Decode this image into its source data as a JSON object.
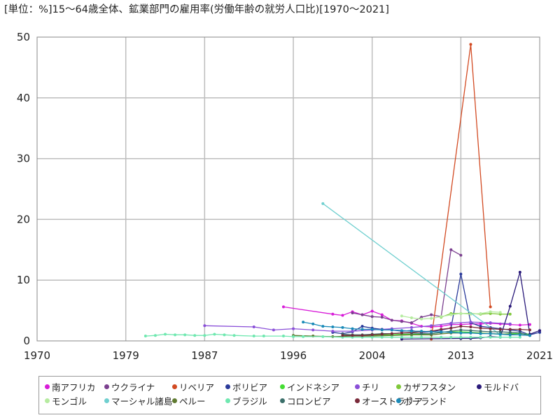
{
  "chart_data": {
    "type": "line",
    "title": "[単位：%]15～64歳全体、鉱業部門の雇用率(労働年齢の就労人口比)[1970～2021]",
    "xlabel": "",
    "ylabel": "",
    "xlim": [
      1970,
      2021
    ],
    "ylim": [
      0,
      50
    ],
    "x_ticks": [
      "1970",
      "1979",
      "1987",
      "1996",
      "2004",
      "2013",
      "2021"
    ],
    "y_ticks": [
      "0",
      "10",
      "20",
      "30",
      "40",
      "50"
    ],
    "grid": true,
    "legend_position": "bottom",
    "series": [
      {
        "name": "南アフリカ",
        "color": "#d81bd8",
        "points": [
          [
            1995,
            5.6
          ],
          [
            2000,
            4.4
          ],
          [
            2001,
            4.2
          ],
          [
            2002,
            4.8
          ],
          [
            2003,
            4.3
          ],
          [
            2004,
            4.9
          ],
          [
            2005,
            4.3
          ],
          [
            2006,
            3.4
          ],
          [
            2007,
            3.3
          ],
          [
            2008,
            2.9
          ],
          [
            2009,
            2.4
          ],
          [
            2010,
            2.3
          ],
          [
            2011,
            2.4
          ],
          [
            2012,
            2.7
          ],
          [
            2013,
            2.7
          ],
          [
            2014,
            2.8
          ],
          [
            2015,
            2.8
          ],
          [
            2016,
            2.9
          ],
          [
            2017,
            2.8
          ],
          [
            2018,
            2.7
          ],
          [
            2019,
            2.6
          ],
          [
            2020,
            2.7
          ]
        ]
      },
      {
        "name": "ウクライナ",
        "color": "#7b3f8f",
        "points": [
          [
            2002,
            4.6
          ],
          [
            2003,
            4.3
          ],
          [
            2004,
            4.0
          ],
          [
            2005,
            3.9
          ],
          [
            2006,
            3.4
          ],
          [
            2007,
            3.2
          ],
          [
            2008,
            3.0
          ],
          [
            2009,
            3.9
          ],
          [
            2010,
            4.3
          ],
          [
            2011,
            4.0
          ],
          [
            2012,
            15.0
          ],
          [
            2013,
            14.1
          ]
        ]
      },
      {
        "name": "リベリア",
        "color": "#d24a22",
        "points": [
          [
            2010,
            0.3
          ],
          [
            2014,
            48.8
          ],
          [
            2016,
            5.6
          ]
        ]
      },
      {
        "name": "ボリビア",
        "color": "#2a3a9a",
        "points": [
          [
            2000,
            1.4
          ],
          [
            2001,
            1.2
          ],
          [
            2002,
            1.5
          ],
          [
            2003,
            2.4
          ],
          [
            2004,
            2.1
          ],
          [
            2005,
            1.9
          ],
          [
            2006,
            1.8
          ],
          [
            2007,
            1.6
          ],
          [
            2008,
            1.7
          ],
          [
            2009,
            1.4
          ],
          [
            2010,
            1.5
          ],
          [
            2011,
            1.8
          ],
          [
            2012,
            2.1
          ],
          [
            2013,
            11.0
          ],
          [
            2014,
            3.0
          ],
          [
            2015,
            2.4
          ],
          [
            2016,
            2.2
          ],
          [
            2017,
            2.0
          ],
          [
            2018,
            1.8
          ],
          [
            2019,
            1.6
          ],
          [
            2020,
            1.0
          ],
          [
            2021,
            1.4
          ]
        ]
      },
      {
        "name": "インドネシア",
        "color": "#44dd33",
        "points": [
          [
            2001,
            0.8
          ],
          [
            2002,
            0.9
          ],
          [
            2003,
            0.8
          ],
          [
            2004,
            0.9
          ],
          [
            2005,
            1.0
          ],
          [
            2006,
            1.0
          ],
          [
            2007,
            1.1
          ],
          [
            2008,
            1.1
          ],
          [
            2009,
            1.1
          ],
          [
            2010,
            1.2
          ],
          [
            2011,
            1.4
          ],
          [
            2012,
            1.5
          ],
          [
            2013,
            1.5
          ],
          [
            2014,
            1.4
          ],
          [
            2015,
            1.3
          ],
          [
            2016,
            1.2
          ],
          [
            2017,
            1.1
          ],
          [
            2018,
            1.2
          ],
          [
            2019,
            1.2
          ],
          [
            2020,
            1.1
          ]
        ]
      },
      {
        "name": "チリ",
        "color": "#8a4fd8",
        "points": [
          [
            1987,
            2.5
          ],
          [
            1992,
            2.3
          ],
          [
            1994,
            1.8
          ],
          [
            1996,
            2.0
          ],
          [
            1998,
            1.8
          ],
          [
            2000,
            1.6
          ],
          [
            2002,
            1.6
          ],
          [
            2004,
            1.8
          ],
          [
            2006,
            2.0
          ],
          [
            2008,
            2.2
          ],
          [
            2010,
            2.5
          ],
          [
            2012,
            2.9
          ],
          [
            2014,
            3.1
          ],
          [
            2016,
            3.0
          ],
          [
            2018,
            2.8
          ]
        ]
      },
      {
        "name": "カザフスタン",
        "color": "#7fc83a",
        "points": [
          [
            2011,
            3.9
          ],
          [
            2012,
            4.5
          ],
          [
            2013,
            4.5
          ],
          [
            2014,
            4.5
          ],
          [
            2015,
            4.4
          ],
          [
            2016,
            4.5
          ],
          [
            2017,
            4.4
          ],
          [
            2018,
            4.4
          ]
        ]
      },
      {
        "name": "モルドバ",
        "color": "#2a1a7a",
        "points": [
          [
            2007,
            0.3
          ],
          [
            2013,
            0.4
          ],
          [
            2014,
            0.4
          ],
          [
            2015,
            0.5
          ],
          [
            2016,
            0.7
          ],
          [
            2017,
            0.6
          ],
          [
            2018,
            5.7
          ],
          [
            2019,
            11.3
          ],
          [
            2020,
            1.1
          ],
          [
            2021,
            1.7
          ]
        ]
      },
      {
        "name": "モンゴル",
        "color": "#b6eba0",
        "points": [
          [
            2007,
            4.1
          ],
          [
            2008,
            3.8
          ],
          [
            2009,
            3.6
          ],
          [
            2010,
            3.7
          ],
          [
            2011,
            4.0
          ],
          [
            2012,
            4.3
          ],
          [
            2013,
            4.5
          ],
          [
            2014,
            4.4
          ],
          [
            2015,
            4.5
          ],
          [
            2016,
            4.8
          ],
          [
            2017,
            4.7
          ]
        ]
      },
      {
        "name": "マーシャル諸島",
        "color": "#6fcfcf",
        "points": [
          [
            1999,
            22.6
          ],
          [
            2017,
            1.0
          ]
        ]
      },
      {
        "name": "ペルー",
        "color": "#5f7a30",
        "points": [
          [
            1996,
            0.9
          ],
          [
            1998,
            0.8
          ],
          [
            2000,
            0.7
          ],
          [
            2002,
            0.8
          ],
          [
            2004,
            0.8
          ],
          [
            2006,
            0.9
          ],
          [
            2008,
            1.0
          ],
          [
            2010,
            1.0
          ],
          [
            2012,
            1.3
          ],
          [
            2014,
            1.3
          ],
          [
            2016,
            1.2
          ],
          [
            2018,
            1.1
          ],
          [
            2020,
            0.9
          ]
        ]
      },
      {
        "name": "ブラジル",
        "color": "#6fe8b0",
        "points": [
          [
            1981,
            0.8
          ],
          [
            1982,
            0.9
          ],
          [
            1983,
            1.1
          ],
          [
            1984,
            1.0
          ],
          [
            1985,
            1.0
          ],
          [
            1986,
            0.9
          ],
          [
            1987,
            0.9
          ],
          [
            1988,
            1.1
          ],
          [
            1989,
            1.0
          ],
          [
            1990,
            0.9
          ],
          [
            1992,
            0.8
          ],
          [
            1993,
            0.8
          ],
          [
            1995,
            0.8
          ],
          [
            1996,
            0.7
          ],
          [
            1997,
            0.7
          ],
          [
            1999,
            0.7
          ],
          [
            2001,
            0.6
          ],
          [
            2002,
            0.6
          ],
          [
            2003,
            0.6
          ],
          [
            2004,
            0.6
          ],
          [
            2005,
            0.6
          ],
          [
            2006,
            0.6
          ],
          [
            2007,
            0.6
          ],
          [
            2008,
            0.6
          ],
          [
            2009,
            0.6
          ],
          [
            2011,
            0.6
          ],
          [
            2012,
            0.6
          ],
          [
            2013,
            0.6
          ],
          [
            2014,
            0.6
          ],
          [
            2015,
            0.6
          ],
          [
            2016,
            0.6
          ],
          [
            2017,
            0.6
          ],
          [
            2018,
            0.6
          ],
          [
            2019,
            0.6
          ]
        ]
      },
      {
        "name": "コロンビア",
        "color": "#3b6f6a",
        "points": [
          [
            2001,
            1.1
          ],
          [
            2002,
            1.0
          ],
          [
            2003,
            1.0
          ],
          [
            2004,
            1.1
          ],
          [
            2005,
            1.2
          ],
          [
            2006,
            1.2
          ],
          [
            2007,
            1.3
          ],
          [
            2008,
            1.3
          ],
          [
            2009,
            1.2
          ],
          [
            2010,
            1.2
          ],
          [
            2011,
            1.4
          ],
          [
            2012,
            1.6
          ],
          [
            2013,
            1.8
          ],
          [
            2014,
            1.7
          ],
          [
            2015,
            1.6
          ],
          [
            2016,
            1.5
          ],
          [
            2017,
            1.5
          ],
          [
            2018,
            1.4
          ],
          [
            2019,
            1.3
          ],
          [
            2020,
            0.9
          ]
        ]
      },
      {
        "name": "オーストラリア",
        "color": "#7a2a3a",
        "points": [
          [
            2001,
            0.9
          ],
          [
            2002,
            0.9
          ],
          [
            2003,
            0.9
          ],
          [
            2004,
            1.0
          ],
          [
            2005,
            1.1
          ],
          [
            2006,
            1.2
          ],
          [
            2007,
            1.3
          ],
          [
            2008,
            1.4
          ],
          [
            2009,
            1.5
          ],
          [
            2010,
            1.6
          ],
          [
            2011,
            1.9
          ],
          [
            2012,
            2.1
          ],
          [
            2013,
            2.4
          ],
          [
            2014,
            2.3
          ],
          [
            2015,
            2.1
          ],
          [
            2016,
            2.0
          ],
          [
            2017,
            1.9
          ],
          [
            2018,
            1.9
          ],
          [
            2019,
            1.9
          ],
          [
            2020,
            1.8
          ]
        ]
      },
      {
        "name": "ポーランド",
        "color": "#1a8ab8",
        "points": [
          [
            1997,
            3.1
          ],
          [
            1998,
            2.8
          ],
          [
            1999,
            2.4
          ],
          [
            2000,
            2.3
          ],
          [
            2001,
            2.2
          ],
          [
            2002,
            2.0
          ],
          [
            2003,
            1.9
          ],
          [
            2004,
            1.9
          ],
          [
            2005,
            1.8
          ],
          [
            2006,
            1.8
          ],
          [
            2007,
            1.7
          ],
          [
            2008,
            1.6
          ],
          [
            2009,
            1.6
          ],
          [
            2010,
            1.5
          ],
          [
            2011,
            1.5
          ],
          [
            2012,
            1.4
          ],
          [
            2013,
            1.3
          ],
          [
            2014,
            1.3
          ],
          [
            2015,
            1.2
          ],
          [
            2016,
            1.2
          ],
          [
            2017,
            1.1
          ],
          [
            2018,
            1.0
          ],
          [
            2019,
            1.0
          ],
          [
            2020,
            0.9
          ]
        ]
      }
    ]
  }
}
